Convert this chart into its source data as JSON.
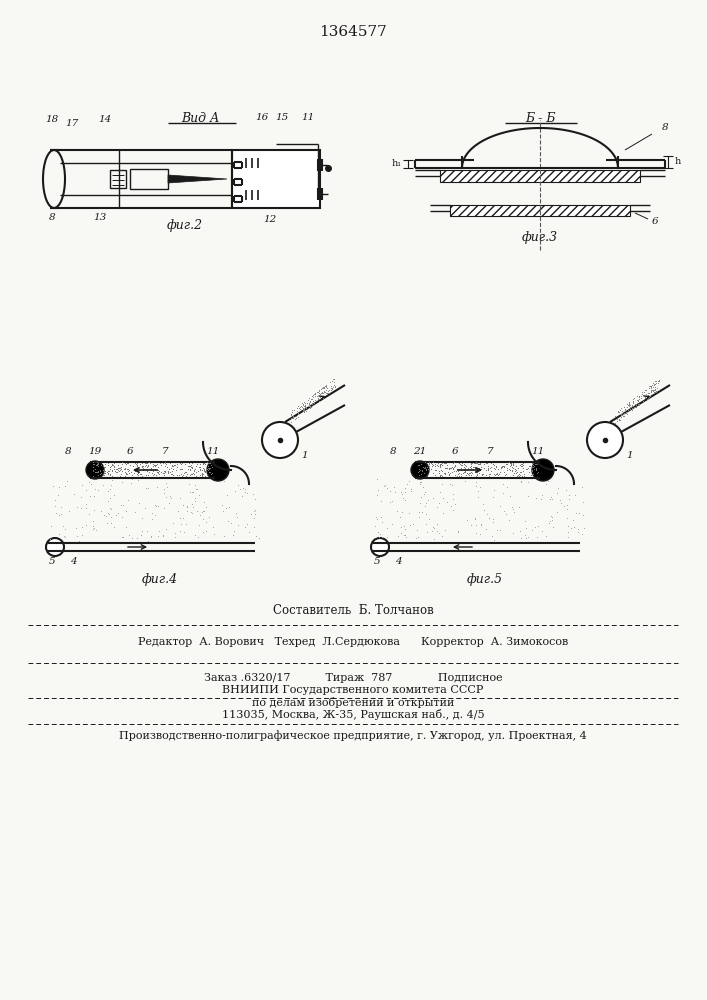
{
  "title": "1364577",
  "bg_color": "#f8f8f5",
  "line_color": "#1a1a1a",
  "fig2_label": "фиг.2",
  "fig3_label": "фиг.3",
  "fig4_label": "фиг.4",
  "fig5_label": "фиг.5",
  "vid_a_label": "Вид А",
  "b_b_label": "Б - Б",
  "footer_line1": "Составитель  Б. Толчанов",
  "footer_line2": "Редактор  А. Ворович   Техред  Л.Сердюкова      Корректор  А. Зимокосов",
  "footer_line3": "Заказ .6320/17          Тираж  787             Подписное",
  "footer_line4": "ВНИИПИ Государственного комитета СССР",
  "footer_line5": "по делам изобретений и открытий",
  "footer_line6": "113035, Москва, Ж-35, Раушская наб., д. 4/5",
  "footer_line7": "Производственно-полиграфическое предприятие, г. Ужгород, ул. Проектная, 4"
}
